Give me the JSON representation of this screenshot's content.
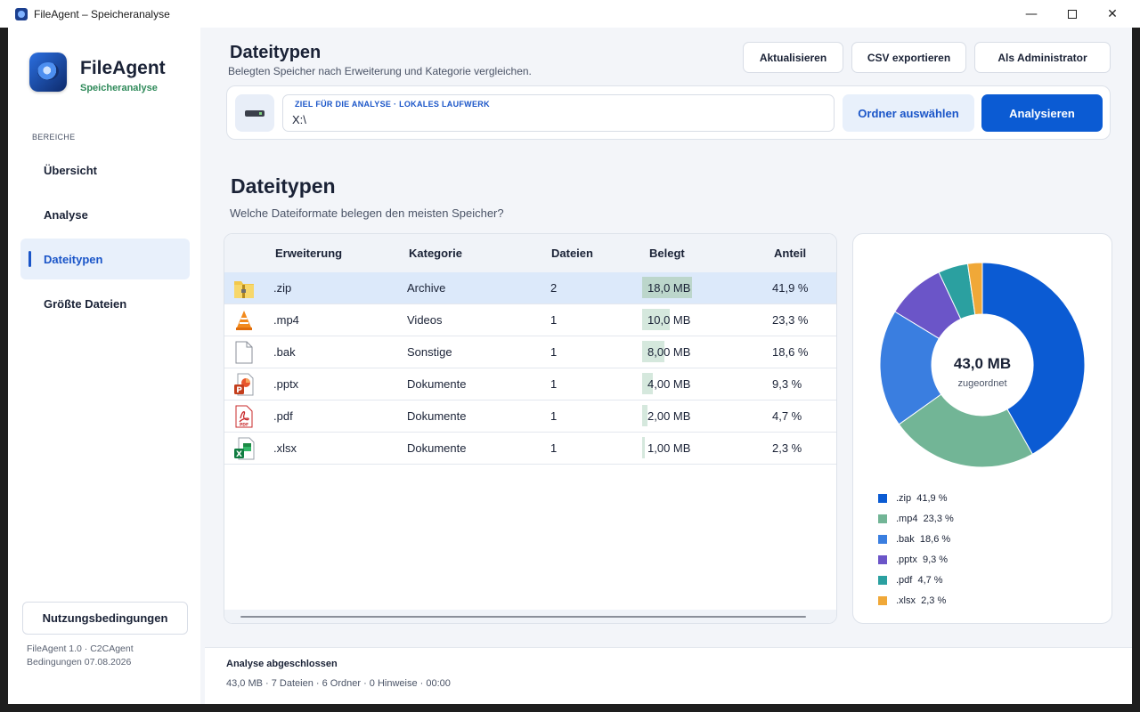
{
  "window": {
    "title": "FileAgent – Speicheranalyse",
    "min_glyph": "—",
    "close_glyph": "✕"
  },
  "sidebar": {
    "brand_name": "FileAgent",
    "brand_sub": "Speicheranalyse",
    "section_label": "BEREICHE",
    "items": [
      {
        "label": "Übersicht"
      },
      {
        "label": "Analyse"
      },
      {
        "label": "Dateitypen"
      },
      {
        "label": "Größte Dateien"
      }
    ],
    "terms_label": "Nutzungsbedingungen",
    "footer_line1": "FileAgent 1.0 · C2CAgent",
    "footer_line2": "Bedingungen 07.08.2026"
  },
  "header": {
    "title": "Dateitypen",
    "subtitle": "Belegten Speicher nach Erweiterung und Kategorie vergleichen.",
    "refresh_label": "Aktualisieren",
    "export_label": "CSV exportieren",
    "admin_label": "Als Administrator"
  },
  "target": {
    "label": "ZIEL FÜR DIE ANALYSE  ·  LOKALES LAUFWERK",
    "value": "X:\\",
    "folder_label": "Ordner auswählen",
    "analyze_label": "Analysieren"
  },
  "section": {
    "title": "Dateitypen",
    "subtitle": "Welche Dateiformate belegen den meisten Speicher?"
  },
  "table": {
    "columns": [
      "Erweiterung",
      "Kategorie",
      "Dateien",
      "Belegt",
      "Anteil"
    ],
    "rows": [
      {
        "ext": ".zip",
        "category": "Archive",
        "files": "2",
        "size": "18,0 MB",
        "share": "41,9 %",
        "share_value": 41.9,
        "icon": "zip-icon"
      },
      {
        "ext": ".mp4",
        "category": "Videos",
        "files": "1",
        "size": "10,0 MB",
        "share": "23,3 %",
        "share_value": 23.3,
        "icon": "vlc-icon"
      },
      {
        "ext": ".bak",
        "category": "Sonstige",
        "files": "1",
        "size": "8,00 MB",
        "share": "18,6 %",
        "share_value": 18.6,
        "icon": "file-icon"
      },
      {
        "ext": ".pptx",
        "category": "Dokumente",
        "files": "1",
        "size": "4,00 MB",
        "share": "9,3 %",
        "share_value": 9.3,
        "icon": "powerpoint-icon"
      },
      {
        "ext": ".pdf",
        "category": "Dokumente",
        "files": "1",
        "size": "2,00 MB",
        "share": "4,7 %",
        "share_value": 4.7,
        "icon": "pdf-icon"
      },
      {
        "ext": ".xlsx",
        "category": "Dokumente",
        "files": "1",
        "size": "1,00 MB",
        "share": "2,3 %",
        "share_value": 2.3,
        "icon": "excel-icon"
      }
    ]
  },
  "chart_data": {
    "type": "pie",
    "center_value": "43,0 MB",
    "center_label": "zugeordnet",
    "slices": [
      {
        "label": ".zip",
        "pct_label": "41,9 %",
        "value": 41.9,
        "color": "#0b5bd3"
      },
      {
        "label": ".mp4",
        "pct_label": "23,3 %",
        "value": 23.3,
        "color": "#72b596"
      },
      {
        "label": ".bak",
        "pct_label": "18,6 %",
        "value": 18.6,
        "color": "#3a7ee0"
      },
      {
        "label": ".pptx",
        "pct_label": "9,3 %",
        "value": 9.3,
        "color": "#6b55c8"
      },
      {
        "label": ".pdf",
        "pct_label": "4,7 %",
        "value": 4.7,
        "color": "#2ba0a0"
      },
      {
        "label": ".xlsx",
        "pct_label": "2,3 %",
        "value": 2.3,
        "color": "#f0a838"
      }
    ],
    "legend_placement": "bottom"
  },
  "status": {
    "title": "Analyse abgeschlossen",
    "detail": "43,0 MB · 7 Dateien · 6 Ordner · 0 Hinweise · 00:00"
  }
}
